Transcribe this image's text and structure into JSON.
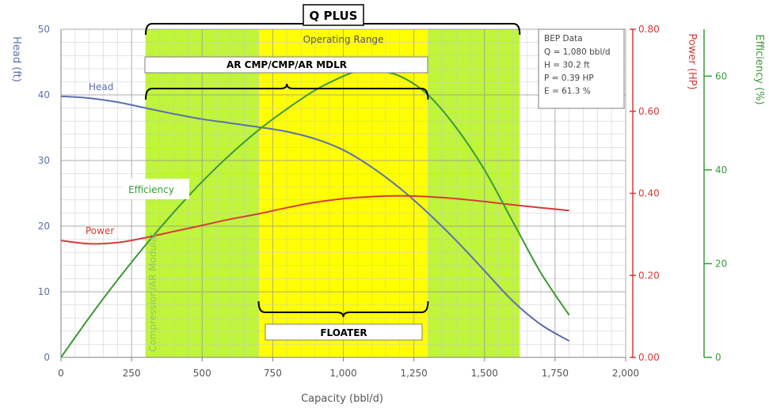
{
  "chart_data": {
    "type": "line",
    "xlabel": "Capacity (bbl/d)",
    "ylabels": {
      "head": "Head (ft)",
      "power": "Power (HP)",
      "efficiency": "Efficiency (%)"
    },
    "xlim": [
      0,
      2000
    ],
    "head_lim": [
      0,
      50
    ],
    "power_lim": [
      0,
      0.8
    ],
    "eff_lim": [
      0,
      70
    ],
    "x_ticks": [
      0,
      250,
      500,
      750,
      1000,
      1250,
      1500,
      1750,
      2000
    ],
    "x_tick_labels": [
      "0",
      "250",
      "500",
      "750",
      "1,000",
      "1,250",
      "1,500",
      "1,750",
      "2,000"
    ],
    "head_ticks": [
      0,
      10,
      20,
      30,
      40,
      50
    ],
    "head_tick_labels": [
      "0",
      "10",
      "20",
      "30",
      "40",
      "50"
    ],
    "power_ticks": [
      0,
      0.2,
      0.4,
      0.6,
      0.8
    ],
    "power_tick_labels": [
      "0.00",
      "0.20",
      "0.40",
      "0.60",
      "0.80"
    ],
    "eff_ticks": [
      0,
      20,
      40,
      60
    ],
    "eff_tick_labels": [
      "0",
      "20",
      "40",
      "60"
    ],
    "grid": true,
    "series": [
      {
        "name": "Head",
        "axis": "head",
        "color": "#5b6fae",
        "x": [
          0,
          100,
          200,
          300,
          400,
          500,
          600,
          700,
          800,
          900,
          1000,
          1100,
          1200,
          1300,
          1400,
          1500,
          1600,
          1700,
          1800
        ],
        "y": [
          39.8,
          39.5,
          38.9,
          38.0,
          37.1,
          36.3,
          35.7,
          35.1,
          34.4,
          33.3,
          31.6,
          29.0,
          25.8,
          22.0,
          17.8,
          13.2,
          8.6,
          5.0,
          2.5
        ]
      },
      {
        "name": "Power",
        "axis": "power",
        "color": "#d63a3a",
        "x": [
          0,
          100,
          200,
          300,
          400,
          500,
          600,
          700,
          800,
          900,
          1000,
          1100,
          1200,
          1300,
          1400,
          1500,
          1600,
          1700,
          1800
        ],
        "y": [
          0.285,
          0.277,
          0.28,
          0.292,
          0.307,
          0.322,
          0.337,
          0.35,
          0.365,
          0.378,
          0.387,
          0.392,
          0.394,
          0.392,
          0.387,
          0.38,
          0.372,
          0.365,
          0.358
        ]
      },
      {
        "name": "Efficiency",
        "axis": "eff",
        "color": "#3a9a3a",
        "x": [
          0,
          100,
          200,
          300,
          400,
          500,
          600,
          700,
          800,
          900,
          1000,
          1050,
          1100,
          1200,
          1300,
          1400,
          1500,
          1600,
          1700,
          1800
        ],
        "y": [
          0,
          8.5,
          16.5,
          24,
          31,
          37.5,
          43.3,
          48.5,
          53,
          57,
          60,
          61,
          61.3,
          60,
          56,
          49,
          40,
          29,
          18,
          9
        ]
      }
    ],
    "bands": [
      {
        "name": "compression-band",
        "from": 300,
        "to": 1625,
        "color": "#bff53a"
      },
      {
        "name": "operating-range-band",
        "from": 700,
        "to": 1300,
        "color": "#ffff00"
      }
    ],
    "annotations": {
      "operating_range": "Operating Range",
      "compression_label": "Compression/AR Modular",
      "head_label": "Head",
      "power_label": "Power",
      "efficiency_label": "Efficiency"
    },
    "bep": {
      "title": "BEP Data",
      "lines": [
        "Q = 1,080 bbl/d",
        "H = 30.2   ft",
        "P = 0.39   HP",
        "E = 61.3    %"
      ]
    },
    "ranges": [
      {
        "label": "Q PLUS",
        "from": 300,
        "to": 1625
      },
      {
        "label": "AR CMP/CMP/AR MDLR",
        "from": 300,
        "to": 1300
      },
      {
        "label": "FLOATER",
        "from": 700,
        "to": 1300
      }
    ]
  }
}
